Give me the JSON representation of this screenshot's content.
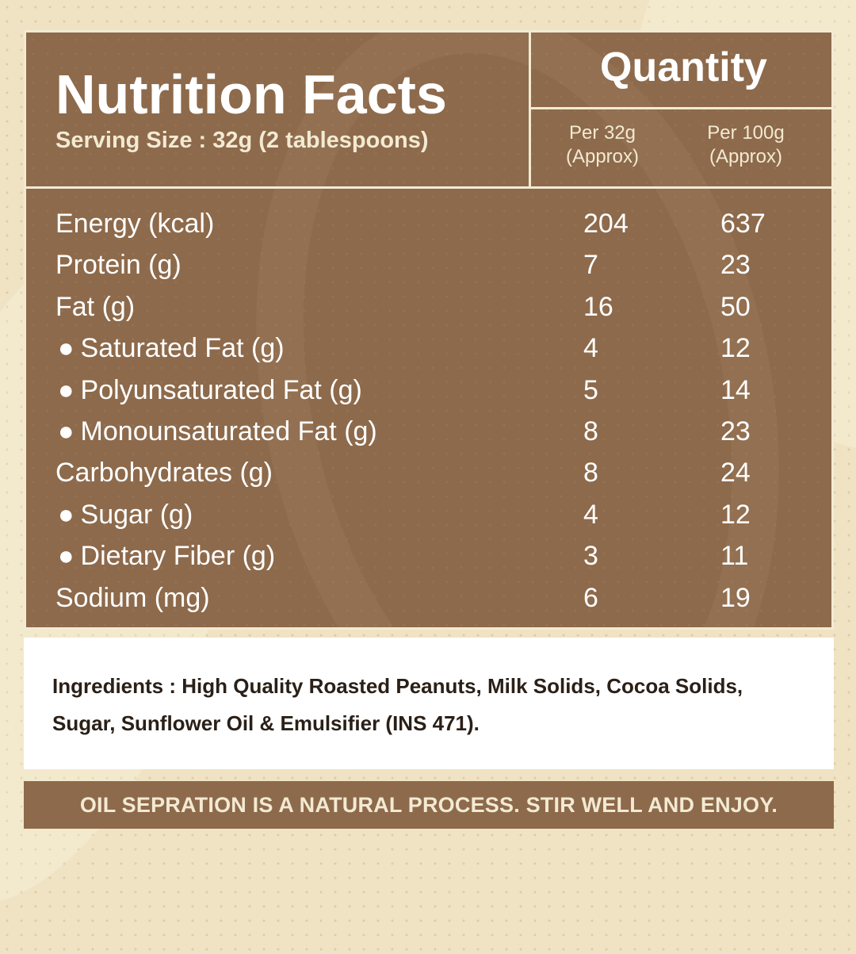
{
  "colors": {
    "panel_brown": "#8d6a4b",
    "background_cream": "#efe3c3",
    "text_white": "#ffffff",
    "text_cream": "#f3ead3",
    "ingredients_text": "#2a2018"
  },
  "header": {
    "title": "Nutrition Facts",
    "serving_size": "Serving Size : 32g (2 tablespoons)",
    "quantity_title": "Quantity",
    "columns": [
      {
        "line1": "Per 32g",
        "line2": "(Approx)"
      },
      {
        "line1": "Per 100g",
        "line2": "(Approx)"
      }
    ]
  },
  "bullet_glyph": "●",
  "nutrients": [
    {
      "label": "Energy (kcal)",
      "per_32g": "204",
      "per_100g": "637"
    },
    {
      "label": "Protein (g)",
      "per_32g": "7",
      "per_100g": "23"
    },
    {
      "label": "Fat (g)",
      "per_32g": "16",
      "per_100g": "50"
    },
    {
      "label": "Saturated Fat (g)",
      "per_32g": "4",
      "per_100g": "12"
    },
    {
      "label": "Polyunsaturated Fat (g)",
      "per_32g": "5",
      "per_100g": "14"
    },
    {
      "label": "Monounsaturated Fat (g)",
      "per_32g": "8",
      "per_100g": "23"
    },
    {
      "label": "Carbohydrates (g)",
      "per_32g": "8",
      "per_100g": "24"
    },
    {
      "label": "Sugar (g)",
      "per_32g": "4",
      "per_100g": "12"
    },
    {
      "label": "Dietary Fiber (g)",
      "per_32g": "3",
      "per_100g": "11"
    },
    {
      "label": "Sodium (mg)",
      "per_32g": "6",
      "per_100g": "19"
    }
  ],
  "ingredients": {
    "text": "Ingredients : High Quality Roasted Peanuts, Milk Solids, Cocoa Solids, Sugar, Sunflower Oil & Emulsifier (INS 471)."
  },
  "footer": {
    "text": "OIL SEPRATION IS A NATURAL PROCESS. STIR WELL AND ENJOY."
  }
}
